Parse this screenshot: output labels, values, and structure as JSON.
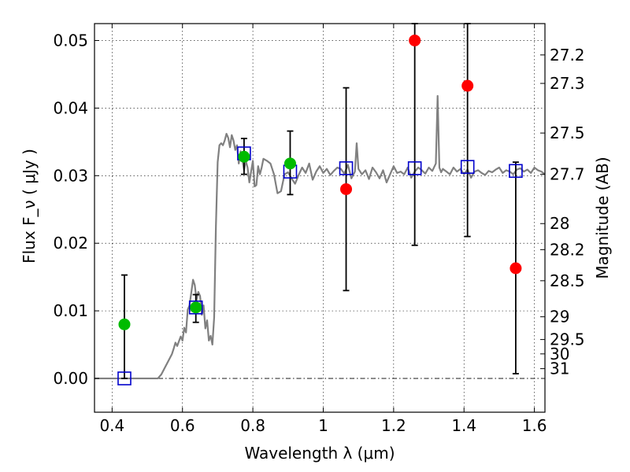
{
  "chart_data": {
    "type": "scatter",
    "title": "",
    "xlabel": "Wavelength  λ (μm)",
    "ylabel": "Flux  F_ν  ( μJy )",
    "ylabel_right": "Magnitude (AB)",
    "xlim": [
      0.35,
      1.63
    ],
    "ylim": [
      -0.005,
      0.0525
    ],
    "grid": true,
    "x_ticks": [
      0.4,
      0.6,
      0.8,
      1.0,
      1.2,
      1.4,
      1.6
    ],
    "x_tick_labels": [
      "0.4",
      "0.6",
      "0.8",
      "1",
      "1.2",
      "1.4",
      "1.6"
    ],
    "y_ticks": [
      0.0,
      0.01,
      0.02,
      0.03,
      0.04,
      0.05
    ],
    "y_tick_labels": [
      "0.00",
      "0.01",
      "0.02",
      "0.03",
      "0.04",
      "0.05"
    ],
    "right_axis_ticks": [
      {
        "label": "27.2",
        "value": 27.2
      },
      {
        "label": "27.3",
        "value": 27.3
      },
      {
        "label": "27.5",
        "value": 27.5
      },
      {
        "label": "27.7",
        "value": 27.7
      },
      {
        "label": "28",
        "value": 28.0
      },
      {
        "label": "28.2",
        "value": 28.2
      },
      {
        "label": "28.5",
        "value": 28.5
      },
      {
        "label": "29",
        "value": 29.0
      },
      {
        "label": "29.5",
        "value": 29.5
      },
      {
        "label": "30",
        "value": 30.0
      },
      {
        "label": "31",
        "value": 31.0
      }
    ],
    "template_spectrum": {
      "color": "#808080",
      "x": [
        0.35,
        0.4,
        0.45,
        0.5,
        0.52,
        0.53,
        0.54,
        0.55,
        0.56,
        0.57,
        0.575,
        0.58,
        0.585,
        0.59,
        0.595,
        0.6,
        0.605,
        0.61,
        0.615,
        0.62,
        0.63,
        0.635,
        0.64,
        0.645,
        0.65,
        0.655,
        0.66,
        0.665,
        0.67,
        0.675,
        0.68,
        0.685,
        0.69,
        0.695,
        0.7,
        0.705,
        0.71,
        0.715,
        0.72,
        0.725,
        0.73,
        0.735,
        0.74,
        0.745,
        0.75,
        0.755,
        0.76,
        0.765,
        0.77,
        0.775,
        0.78,
        0.785,
        0.79,
        0.8,
        0.805,
        0.81,
        0.815,
        0.82,
        0.825,
        0.83,
        0.84,
        0.85,
        0.86,
        0.87,
        0.88,
        0.89,
        0.9,
        0.91,
        0.92,
        0.93,
        0.94,
        0.95,
        0.96,
        0.97,
        0.98,
        0.99,
        1.0,
        1.01,
        1.02,
        1.03,
        1.04,
        1.05,
        1.06,
        1.07,
        1.08,
        1.09,
        1.095,
        1.1,
        1.11,
        1.12,
        1.13,
        1.14,
        1.15,
        1.16,
        1.17,
        1.18,
        1.19,
        1.2,
        1.21,
        1.22,
        1.23,
        1.24,
        1.25,
        1.26,
        1.27,
        1.28,
        1.29,
        1.3,
        1.31,
        1.32,
        1.325,
        1.33,
        1.335,
        1.34,
        1.35,
        1.36,
        1.37,
        1.38,
        1.39,
        1.4,
        1.41,
        1.42,
        1.43,
        1.44,
        1.45,
        1.46,
        1.47,
        1.48,
        1.49,
        1.5,
        1.51,
        1.52,
        1.53,
        1.54,
        1.55,
        1.56,
        1.57,
        1.58,
        1.59,
        1.6,
        1.61,
        1.62,
        1.63
      ],
      "y": [
        0.0,
        0.0,
        0.0,
        0.0,
        0.0,
        0.0,
        0.0006,
        0.0016,
        0.0026,
        0.0036,
        0.0044,
        0.0053,
        0.0048,
        0.0055,
        0.0062,
        0.0056,
        0.0075,
        0.0068,
        0.0102,
        0.0108,
        0.0146,
        0.0138,
        0.0116,
        0.0128,
        0.0122,
        0.0094,
        0.0108,
        0.0074,
        0.0086,
        0.0056,
        0.0063,
        0.005,
        0.009,
        0.0225,
        0.032,
        0.0345,
        0.0348,
        0.0345,
        0.0352,
        0.0362,
        0.0356,
        0.0342,
        0.036,
        0.0352,
        0.0338,
        0.0345,
        0.0318,
        0.0336,
        0.0324,
        0.0308,
        0.0322,
        0.0312,
        0.029,
        0.0322,
        0.0284,
        0.0286,
        0.0314,
        0.0302,
        0.0312,
        0.0325,
        0.0322,
        0.0318,
        0.0302,
        0.0274,
        0.0277,
        0.0302,
        0.0305,
        0.0296,
        0.0288,
        0.0301,
        0.0312,
        0.0304,
        0.0318,
        0.0294,
        0.0306,
        0.0314,
        0.0304,
        0.031,
        0.0301,
        0.0307,
        0.0312,
        0.031,
        0.0303,
        0.0316,
        0.0296,
        0.0306,
        0.0348,
        0.031,
        0.0302,
        0.0308,
        0.0295,
        0.0312,
        0.0305,
        0.0296,
        0.0308,
        0.029,
        0.0302,
        0.0314,
        0.0304,
        0.0306,
        0.0302,
        0.0312,
        0.0297,
        0.0306,
        0.0312,
        0.0308,
        0.0303,
        0.0312,
        0.0307,
        0.0318,
        0.0418,
        0.0312,
        0.0305,
        0.031,
        0.0306,
        0.0302,
        0.0312,
        0.0306,
        0.031,
        0.0302,
        0.0309,
        0.0297,
        0.0306,
        0.0308,
        0.0304,
        0.0301,
        0.0307,
        0.0305,
        0.0309,
        0.0312,
        0.0304,
        0.0308,
        0.0306,
        0.0302,
        0.0309,
        0.0311,
        0.0306,
        0.0309,
        0.0304,
        0.0312,
        0.0308,
        0.0306,
        0.0302
      ]
    },
    "series": [
      {
        "name": "",
        "marker": "square",
        "color": "#0000cc",
        "x": [
          0.435,
          0.638,
          0.775,
          0.906,
          1.065,
          1.26,
          1.41,
          1.547
        ],
        "y": [
          0.0,
          0.0105,
          0.0333,
          0.0306,
          0.0311,
          0.0311,
          0.0313,
          0.0307
        ]
      },
      {
        "name": "",
        "marker": "circle",
        "color": "#00bb00",
        "x": [
          0.435,
          0.638,
          0.775,
          0.906
        ],
        "y": [
          0.008,
          0.0105,
          0.0328,
          0.0318
        ],
        "err_low": [
          0.0,
          0.0083,
          0.0302,
          0.0272
        ],
        "err_high": [
          0.0153,
          0.0124,
          0.0355,
          0.0366
        ]
      },
      {
        "name": "",
        "marker": "circle",
        "color": "#ff0000",
        "x": [
          1.065,
          1.26,
          1.41,
          1.547
        ],
        "y": [
          0.028,
          0.05,
          0.0433,
          0.0163
        ],
        "err_low": [
          0.013,
          0.0197,
          0.021,
          0.0007
        ],
        "err_high": [
          0.043,
          0.0525,
          0.0525,
          0.032
        ]
      }
    ]
  }
}
